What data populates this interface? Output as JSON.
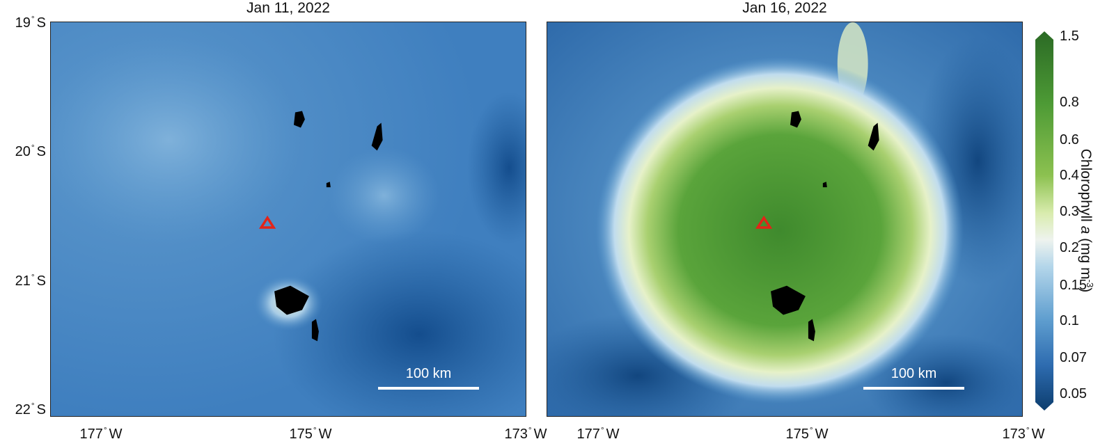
{
  "panels": [
    {
      "title": "Jan 11, 2022",
      "scalebar_label": "100 km",
      "state": "pre-eruption"
    },
    {
      "title": "Jan 16, 2022",
      "scalebar_label": "100 km",
      "state": "post-eruption"
    }
  ],
  "axes": {
    "lat_labels": [
      {
        "value": "19",
        "unit": "S"
      },
      {
        "value": "20",
        "unit": "S"
      },
      {
        "value": "21",
        "unit": "S"
      },
      {
        "value": "22",
        "unit": "S"
      }
    ],
    "lon_labels": [
      {
        "value": "177",
        "unit": "W"
      },
      {
        "value": "175",
        "unit": "W"
      },
      {
        "value": "173",
        "unit": "W"
      }
    ],
    "degree_symbol": "°"
  },
  "colorbar": {
    "title_main": "Chlorophyll ",
    "title_italic": "a",
    "title_units_pre": " (mg m",
    "title_units_sup": "-3",
    "title_units_post": ")",
    "ticks": [
      "1.5",
      "0.8",
      "0.6",
      "0.4",
      "0.3",
      "0.2",
      "0.15",
      "0.1",
      "0.07",
      "0.05"
    ],
    "colors": [
      "#2b6a25",
      "#4d9a35",
      "#8cc150",
      "#d9ecae",
      "#eef3ee",
      "#b4d6ea",
      "#5f9ecf",
      "#2e6cb0",
      "#0c3d6e"
    ]
  },
  "marker": {
    "icon": "volcano-triangle-icon",
    "color": "#e22418"
  },
  "colors": {
    "ocean_low": "#1f5c9c",
    "ocean_mid": "#3a7dbd",
    "ocean_light": "#8fbcdf",
    "bloom": "#4f9a36",
    "land": "#000000"
  }
}
